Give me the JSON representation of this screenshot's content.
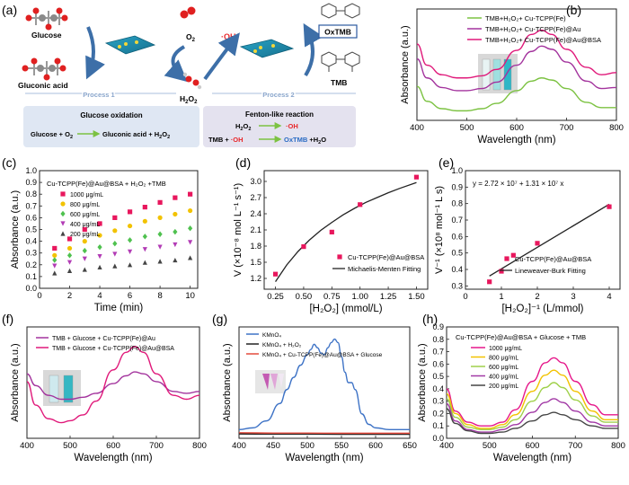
{
  "figure": {
    "panel_labels": [
      "(a)",
      "(b)",
      "(c)",
      "(d)",
      "(e)",
      "(f)",
      "(g)",
      "(h)"
    ]
  },
  "schematic": {
    "glucose": "Glucose",
    "gluconic_acid": "Gluconic acid",
    "o2": "O",
    "o2_sub": "2",
    "oh_radical": "·OH",
    "h2o2": "H",
    "h2o2_sub1": "2",
    "h2o2_o": "O",
    "h2o2_sub2": "2",
    "oxtmb": "OxTMB",
    "tmb": "TMB",
    "process1": "Process 1",
    "process2": "Process 2",
    "box1_title": "Glucose oxidation",
    "box1_left": "Glucose + O",
    "box1_left_sub": "2",
    "box1_right": "Gluconic acid + H",
    "box1_right_sub1": "2",
    "box1_right_o": "O",
    "box1_right_sub2": "2",
    "box2_title": "Fenton-like reaction",
    "box2_r1_left": "H",
    "box2_r1_sub1": "2",
    "box2_r1_o": "O",
    "box2_r1_sub2": "2",
    "box2_r1_right": "·OH",
    "box2_r2_left": "TMB + ",
    "box2_r2_oh": "·OH",
    "box2_r2_right": "OxTMB",
    "box2_r2_tail": " +H",
    "box2_r2_sub": "2",
    "box2_r2_o": "O",
    "colors": {
      "arrow_blue": "#3d6fa8",
      "accent_red": "#e8262a",
      "cyan": "#2ab7c9",
      "box1_bg": "#dfe7f3",
      "box2_bg": "#e4e2ef",
      "green": "#7cc242"
    }
  },
  "chart_data": [
    {
      "id": "b",
      "type": "line",
      "xlabel": "Wavelength (nm)",
      "ylabel": "Absorbance (a.u.)",
      "xlim": [
        400,
        800
      ],
      "xticks": [
        400,
        500,
        600,
        700,
        800
      ],
      "series": [
        {
          "name": "TMB+H₂O₂+ Cu-TCPP(Fe)",
          "color": "#7cc242",
          "x": [
            400,
            420,
            450,
            480,
            500,
            530,
            560,
            600,
            630,
            650,
            670,
            700,
            740,
            770,
            800
          ],
          "y": [
            0.32,
            0.18,
            0.11,
            0.09,
            0.09,
            0.11,
            0.16,
            0.28,
            0.37,
            0.4,
            0.38,
            0.3,
            0.17,
            0.12,
            0.12
          ]
        },
        {
          "name": "TMB+H₂O₂+ Cu-TCPP(Fe)@Au",
          "color": "#a3339d",
          "x": [
            400,
            420,
            450,
            480,
            500,
            530,
            560,
            600,
            630,
            650,
            670,
            700,
            740,
            770,
            800
          ],
          "y": [
            0.58,
            0.4,
            0.31,
            0.28,
            0.28,
            0.3,
            0.36,
            0.52,
            0.65,
            0.7,
            0.67,
            0.55,
            0.37,
            0.3,
            0.31
          ]
        },
        {
          "name": "TMB+H₂O₂+ Cu-TCPP(Fe)@Au@BSA",
          "color": "#e0197a",
          "x": [
            400,
            420,
            450,
            480,
            500,
            530,
            560,
            600,
            630,
            650,
            670,
            700,
            740,
            770,
            800
          ],
          "y": [
            0.72,
            0.52,
            0.43,
            0.4,
            0.4,
            0.42,
            0.48,
            0.66,
            0.81,
            0.85,
            0.81,
            0.67,
            0.5,
            0.43,
            0.45
          ]
        }
      ]
    },
    {
      "id": "c",
      "type": "scatter",
      "title": "Cu-TCPP(Fe)@Au@BSA + H₂O₂ +TMB",
      "xlabel": "Time (min)",
      "ylabel": "Absorbance (a.u.)",
      "xlim": [
        0,
        10.5
      ],
      "ylim": [
        0,
        1.0
      ],
      "xticks": [
        0,
        2,
        4,
        6,
        8,
        10
      ],
      "yticks": [
        0.0,
        0.1,
        0.2,
        0.3,
        0.4,
        0.5,
        0.6,
        0.7,
        0.8,
        0.9,
        1.0
      ],
      "x": [
        1,
        2,
        3,
        4,
        5,
        6,
        7,
        8,
        9,
        10
      ],
      "series": [
        {
          "name": "1000 μg/mL",
          "color": "#e8175d",
          "marker": "square",
          "y": [
            0.34,
            0.42,
            0.5,
            0.55,
            0.6,
            0.65,
            0.69,
            0.73,
            0.77,
            0.8
          ]
        },
        {
          "name": "800 μg/mL",
          "color": "#f2c200",
          "marker": "circle",
          "y": [
            0.28,
            0.34,
            0.4,
            0.45,
            0.49,
            0.53,
            0.57,
            0.6,
            0.63,
            0.66
          ]
        },
        {
          "name": "600 μg/mL",
          "color": "#4fc14f",
          "marker": "diamond",
          "y": [
            0.24,
            0.28,
            0.32,
            0.35,
            0.38,
            0.41,
            0.44,
            0.46,
            0.48,
            0.51
          ]
        },
        {
          "name": "400 μg/mL",
          "color": "#b23bb5",
          "marker": "triangle-down",
          "y": [
            0.19,
            0.22,
            0.25,
            0.27,
            0.29,
            0.31,
            0.33,
            0.35,
            0.37,
            0.39
          ]
        },
        {
          "name": "200 μg/mL",
          "color": "#444444",
          "marker": "triangle-up",
          "y": [
            0.13,
            0.15,
            0.16,
            0.18,
            0.19,
            0.2,
            0.22,
            0.23,
            0.24,
            0.26
          ]
        }
      ]
    },
    {
      "id": "d",
      "type": "scatter",
      "xlabel": "[H₂O₂] (mmol/L)",
      "ylabel": "V (×10⁻⁸ mol L⁻¹ s⁻¹)",
      "xlim": [
        0.15,
        1.6
      ],
      "ylim": [
        1.0,
        3.2
      ],
      "xticks": [
        0.25,
        0.5,
        0.75,
        1.0,
        1.25,
        1.5
      ],
      "yticks": [
        1.2,
        1.5,
        1.8,
        2.1,
        2.4,
        2.7,
        3.0
      ],
      "points": {
        "name": "Cu-TCPP(Fe)@Au@BSA",
        "color": "#e8175d",
        "x": [
          0.25,
          0.5,
          0.75,
          1.0,
          1.5
        ],
        "y": [
          1.28,
          1.79,
          2.06,
          2.57,
          3.08
        ]
      },
      "fit": {
        "name": "Michaelis-Menten Fitting",
        "color": "#222222",
        "x": [
          0.25,
          0.35,
          0.45,
          0.55,
          0.65,
          0.75,
          0.85,
          0.95,
          1.05,
          1.15,
          1.25,
          1.35,
          1.5
        ],
        "y": [
          1.14,
          1.45,
          1.7,
          1.91,
          2.09,
          2.24,
          2.38,
          2.5,
          2.61,
          2.7,
          2.79,
          2.87,
          2.98
        ]
      }
    },
    {
      "id": "e",
      "type": "scatter",
      "equation": "y = 2.72 × 10⁷ + 1.31 × 10⁷ x",
      "xlabel": "[H₂O₂]⁻¹ (L/mmol)",
      "ylabel": "V⁻¹ (×10⁸ mol⁻¹ L s)",
      "xlim": [
        0,
        4.3
      ],
      "ylim": [
        0.28,
        1.0
      ],
      "xticks": [
        0,
        1,
        2,
        3,
        4
      ],
      "yticks": [
        0.3,
        0.4,
        0.5,
        0.6,
        0.7,
        0.8,
        0.9,
        1.0
      ],
      "points": {
        "name": "Cu-TCPP(Fe)@Au@BSA",
        "color": "#e8175d",
        "x": [
          0.667,
          1.0,
          1.333,
          2.0,
          4.0
        ],
        "y": [
          0.325,
          0.389,
          0.486,
          0.559,
          0.781
        ]
      },
      "fit": {
        "name": "Lineweaver-Burk Fitting",
        "color": "#222222",
        "x": [
          0.667,
          4.0
        ],
        "y": [
          0.36,
          0.796
        ]
      }
    },
    {
      "id": "f",
      "type": "line",
      "xlabel": "Wavelength (nm)",
      "ylabel": "Absorbance (a.u.)",
      "xlim": [
        400,
        800
      ],
      "xticks": [
        400,
        500,
        600,
        700,
        800
      ],
      "series": [
        {
          "name": "TMB + Glucose + Cu-TCPP(Fe)@Au",
          "color": "#a3339d",
          "x": [
            400,
            420,
            450,
            480,
            500,
            530,
            560,
            600,
            630,
            650,
            670,
            700,
            740,
            770,
            800
          ],
          "y": [
            0.38,
            0.32,
            0.27,
            0.25,
            0.25,
            0.26,
            0.28,
            0.33,
            0.37,
            0.39,
            0.38,
            0.34,
            0.29,
            0.28,
            0.29
          ]
        },
        {
          "name": "TMB + Glucose + Cu-TCPP(Fe)@Au@BSA",
          "color": "#e0197a",
          "x": [
            400,
            420,
            450,
            480,
            500,
            530,
            560,
            600,
            630,
            650,
            670,
            700,
            740,
            770,
            800
          ],
          "y": [
            0.34,
            0.22,
            0.15,
            0.13,
            0.14,
            0.17,
            0.24,
            0.4,
            0.49,
            0.52,
            0.49,
            0.38,
            0.27,
            0.25,
            0.27
          ]
        }
      ]
    },
    {
      "id": "g",
      "type": "line",
      "xlabel": "Wavelength (nm)",
      "ylabel": "Absorbance (a.u.)",
      "xlim": [
        400,
        650
      ],
      "xticks": [
        400,
        450,
        500,
        550,
        600,
        650
      ],
      "series": [
        {
          "name": "KMnO₄",
          "color": "#3e73c6",
          "x": [
            400,
            420,
            440,
            460,
            470,
            480,
            490,
            500,
            505,
            510,
            515,
            520,
            525,
            530,
            535,
            540,
            545,
            550,
            555,
            560,
            565,
            570,
            580,
            590,
            600,
            620,
            650
          ],
          "y": [
            0.03,
            0.04,
            0.08,
            0.18,
            0.26,
            0.33,
            0.4,
            0.46,
            0.49,
            0.52,
            0.5,
            0.47,
            0.46,
            0.5,
            0.53,
            0.55,
            0.53,
            0.45,
            0.36,
            0.3,
            0.3,
            0.26,
            0.12,
            0.06,
            0.04,
            0.03,
            0.03
          ]
        },
        {
          "name": "KMnO₄ + H₂O₂",
          "color": "#222222",
          "x": [
            400,
            450,
            500,
            550,
            600,
            650
          ],
          "y": [
            0.005,
            0.004,
            0.004,
            0.003,
            0.003,
            0.003
          ]
        },
        {
          "name": "KMnO₄ + Cu-TCPP(Fe)@Au@BSA + Glucose",
          "color": "#e34a3c",
          "x": [
            400,
            450,
            500,
            550,
            600,
            650
          ],
          "y": [
            0.012,
            0.01,
            0.01,
            0.009,
            0.009,
            0.009
          ]
        }
      ]
    },
    {
      "id": "h",
      "type": "line",
      "title": "Cu-TCPP(Fe)@Au@BSA + Glucose + TMB",
      "xlabel": "Wavelength (nm)",
      "ylabel": "Absorbance (a.u.)",
      "xlim": [
        400,
        800
      ],
      "ylim": [
        0.0,
        0.9
      ],
      "xticks": [
        400,
        500,
        600,
        700,
        800
      ],
      "yticks": [
        0.0,
        0.1,
        0.2,
        0.3,
        0.4,
        0.5,
        0.6,
        0.7,
        0.8,
        0.9
      ],
      "series": [
        {
          "name": "1000 μg/mL",
          "color": "#e6178a",
          "x": [
            400,
            420,
            450,
            480,
            500,
            530,
            560,
            600,
            630,
            650,
            670,
            700,
            740,
            770,
            800
          ],
          "y": [
            0.4,
            0.22,
            0.13,
            0.1,
            0.1,
            0.13,
            0.23,
            0.46,
            0.61,
            0.65,
            0.61,
            0.46,
            0.27,
            0.19,
            0.19
          ]
        },
        {
          "name": "800 μg/mL",
          "color": "#f2c200",
          "x": [
            400,
            420,
            450,
            480,
            500,
            530,
            560,
            600,
            630,
            650,
            670,
            700,
            740,
            770,
            800
          ],
          "y": [
            0.36,
            0.2,
            0.11,
            0.08,
            0.08,
            0.11,
            0.19,
            0.38,
            0.51,
            0.55,
            0.51,
            0.38,
            0.22,
            0.15,
            0.15
          ]
        },
        {
          "name": "600 μg/mL",
          "color": "#9fd04a",
          "x": [
            400,
            420,
            450,
            480,
            500,
            530,
            560,
            600,
            630,
            650,
            670,
            700,
            740,
            770,
            800
          ],
          "y": [
            0.32,
            0.17,
            0.09,
            0.07,
            0.07,
            0.09,
            0.15,
            0.3,
            0.41,
            0.45,
            0.41,
            0.31,
            0.18,
            0.13,
            0.13
          ]
        },
        {
          "name": "400 μg/mL",
          "color": "#a23aa6",
          "x": [
            400,
            420,
            450,
            480,
            500,
            530,
            560,
            600,
            630,
            650,
            670,
            700,
            740,
            770,
            800
          ],
          "y": [
            0.28,
            0.14,
            0.07,
            0.05,
            0.05,
            0.07,
            0.11,
            0.21,
            0.29,
            0.32,
            0.29,
            0.22,
            0.13,
            0.1,
            0.1
          ]
        },
        {
          "name": "200 μg/mL",
          "color": "#444444",
          "x": [
            400,
            420,
            450,
            480,
            500,
            530,
            560,
            600,
            630,
            650,
            670,
            700,
            740,
            770,
            800
          ],
          "y": [
            0.24,
            0.12,
            0.06,
            0.04,
            0.04,
            0.05,
            0.08,
            0.14,
            0.19,
            0.21,
            0.19,
            0.15,
            0.1,
            0.08,
            0.08
          ]
        }
      ]
    }
  ]
}
